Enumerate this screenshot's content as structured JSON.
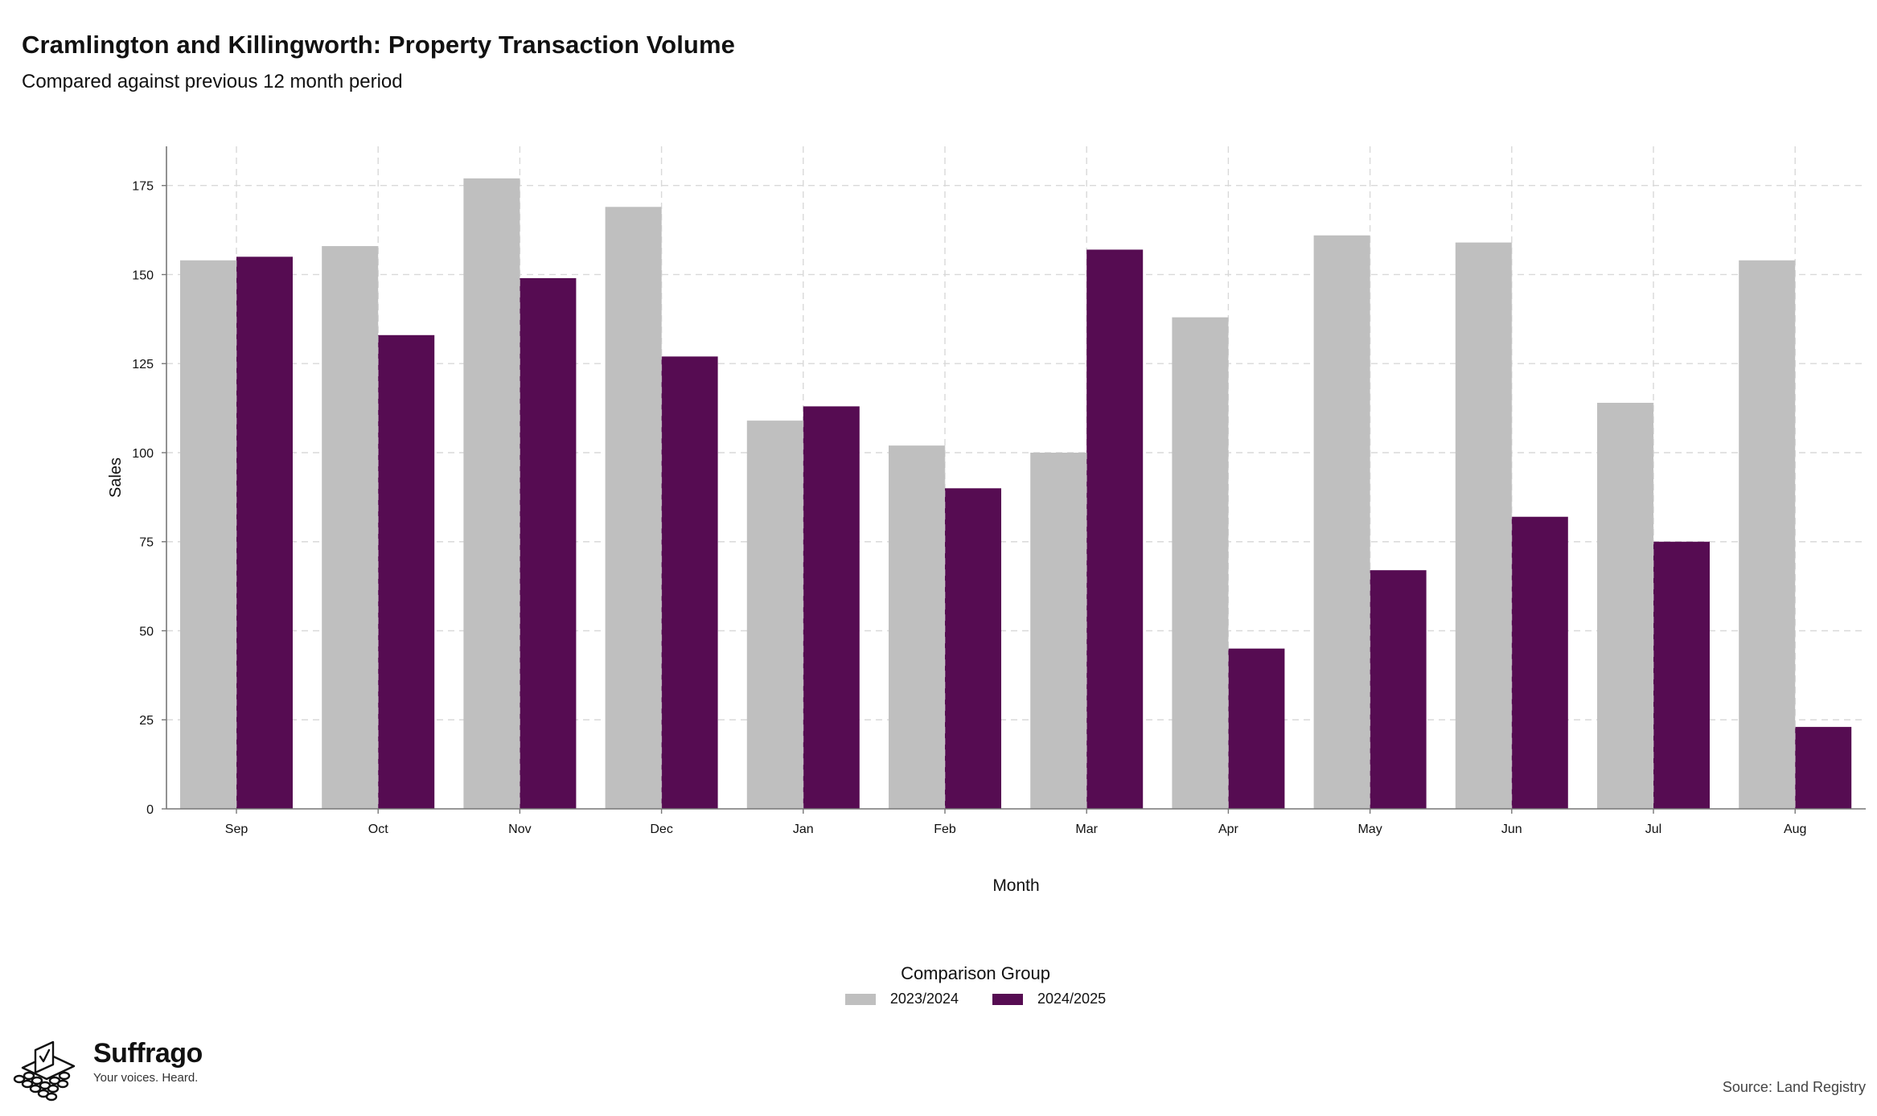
{
  "title": "Cramlington and Killingworth: Property Transaction Volume",
  "subtitle": "Compared against previous 12 month period",
  "chart_data": {
    "type": "bar",
    "xlabel": "Month",
    "ylabel": "Sales",
    "categories": [
      "Sep",
      "Oct",
      "Nov",
      "Dec",
      "Jan",
      "Feb",
      "Mar",
      "Apr",
      "May",
      "Jun",
      "Jul",
      "Aug"
    ],
    "series": [
      {
        "name": "2023/2024",
        "color": "#bfbfbf",
        "values": [
          154,
          158,
          177,
          169,
          109,
          102,
          100,
          138,
          161,
          159,
          114,
          154
        ]
      },
      {
        "name": "2024/2025",
        "color": "#560c52",
        "values": [
          155,
          133,
          149,
          127,
          113,
          90,
          157,
          45,
          67,
          82,
          75,
          23
        ]
      }
    ],
    "ylim": [
      0,
      186
    ],
    "yticks": [
      0,
      25,
      50,
      75,
      100,
      125,
      150,
      175
    ],
    "grid": true,
    "legend_title": "Comparison Group",
    "legend_position": "bottom"
  },
  "brand": {
    "name": "Suffrago",
    "tagline": "Your voices. Heard.",
    "icon": "ballot-box-icon"
  },
  "source": "Source: Land Registry"
}
